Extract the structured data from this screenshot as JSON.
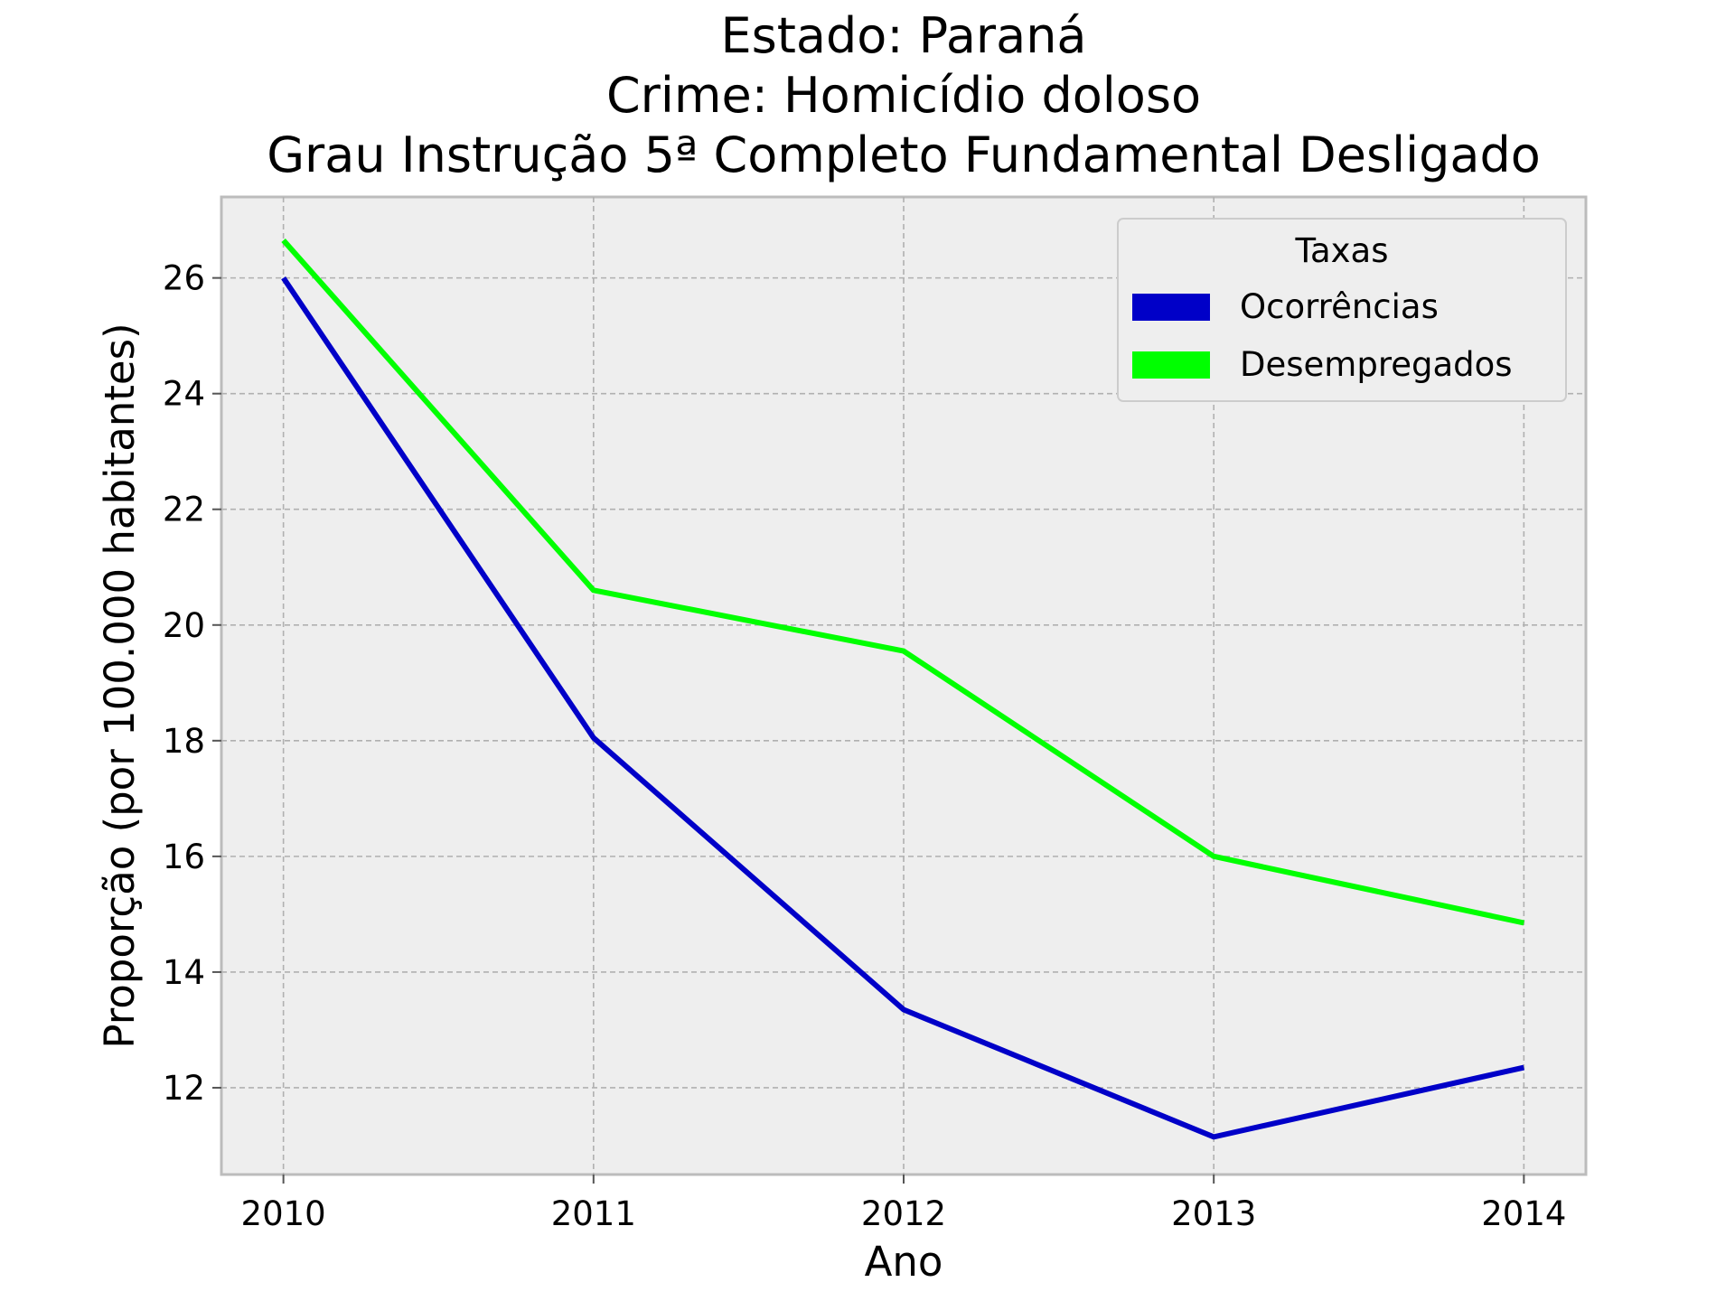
{
  "chart_data": {
    "type": "line",
    "title_lines": [
      "Estado: Paraná",
      "Crime: Homicídio doloso",
      "Grau Instrução  5ª Completo Fundamental   Desligado"
    ],
    "xlabel": "Ano",
    "ylabel": "Proporção (por 100.000 habitantes)",
    "x": [
      2010,
      2011,
      2012,
      2013,
      2014
    ],
    "x_tick_labels": [
      "2010",
      "2011",
      "2012",
      "2013",
      "2014"
    ],
    "y_ticks": [
      12,
      14,
      16,
      18,
      20,
      22,
      24,
      26
    ],
    "y_tick_labels": [
      "12",
      "14",
      "16",
      "18",
      "20",
      "22",
      "24",
      "26"
    ],
    "xlim": [
      2009.8,
      2014.2
    ],
    "ylim": [
      10.5,
      27.4
    ],
    "grid": true,
    "legend": {
      "title": "Taxas",
      "placement": "top-right"
    },
    "series": [
      {
        "name": "Ocorrências",
        "color": "#0000c8",
        "values": [
          26.0,
          18.05,
          13.35,
          11.15,
          12.35
        ]
      },
      {
        "name": "Desempregados",
        "color": "#00ff00",
        "values": [
          26.65,
          20.6,
          19.55,
          16.0,
          14.85
        ]
      }
    ]
  }
}
